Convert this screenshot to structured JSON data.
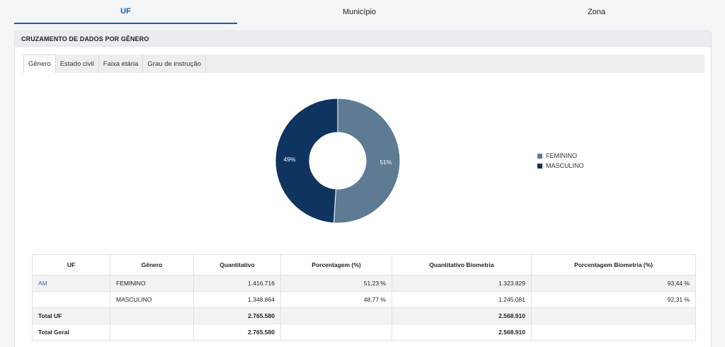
{
  "top_tabs": [
    "UF",
    "Município",
    "Zona"
  ],
  "panel": {
    "title": "CRUZAMENTO DE DADOS POR GÊNERO"
  },
  "sub_tabs": [
    "Gênero",
    "Estado civil",
    "Faixa etária",
    "Grau de instrução"
  ],
  "chart_data": {
    "type": "pie",
    "donut": true,
    "categories": [
      "FEMININO",
      "MASCULINO"
    ],
    "values": [
      51,
      49
    ],
    "labels": [
      "51%",
      "49%"
    ],
    "colors": [
      "#5e7b94",
      "#0f3460"
    ],
    "legend_position": "right"
  },
  "table": {
    "headers": [
      "UF",
      "Gênero",
      "Quantitativo",
      "Porcentagem (%)",
      "Quantitativo Biometria",
      "Porcentagem Biometria (%)"
    ],
    "rows": [
      {
        "uf": "AM",
        "genero": "FEMININO",
        "quantitativo": "1.416.716",
        "porcentagem": "51,23 %",
        "quant_bio": "1.323.829",
        "porc_bio": "93,44 %"
      },
      {
        "uf": "",
        "genero": "MASCULINO",
        "quantitativo": "1.348.864",
        "porcentagem": "48,77 %",
        "quant_bio": "1.245.081",
        "porc_bio": "92,31 %"
      }
    ],
    "totals": [
      {
        "label": "Total UF",
        "quantitativo": "2.765.580",
        "quant_bio": "2.568.910"
      },
      {
        "label": "Total Geral",
        "quantitativo": "2.765.580",
        "quant_bio": "2.568.910"
      }
    ]
  }
}
